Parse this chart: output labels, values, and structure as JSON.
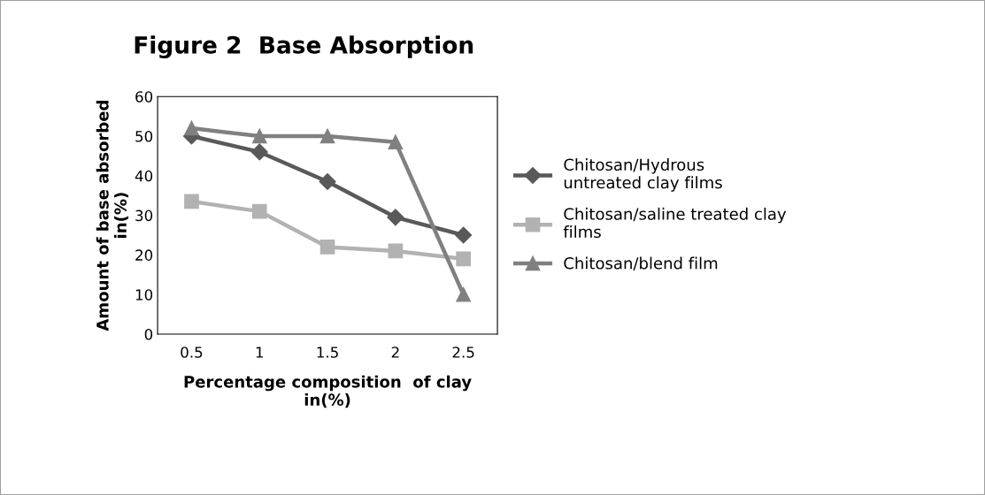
{
  "chart_data": {
    "type": "line",
    "title": "Figure 2  Base Absorption",
    "xlabel": "Percentage composition  of clay\nin(%)",
    "ylabel": "Amount of base absorbed\nin(%)",
    "categories": [
      "0.5",
      "1",
      "1.5",
      "2",
      "2.5"
    ],
    "series": [
      {
        "name": "Chitosan/Hydrous\nuntreated clay films",
        "color": "#595959",
        "marker": "diamond",
        "values": [
          50,
          46,
          38.5,
          29.5,
          25
        ]
      },
      {
        "name": "Chitosan/saline treated clay\nfilms",
        "color": "#b2b2b2",
        "marker": "square",
        "values": [
          33.5,
          31,
          22,
          21,
          19
        ]
      },
      {
        "name": "Chitosan/blend film",
        "color": "#808080",
        "marker": "triangle",
        "values": [
          52,
          50,
          50,
          48.5,
          10
        ]
      }
    ],
    "ylim": [
      0,
      60
    ],
    "yticks": [
      0,
      10,
      20,
      30,
      40,
      50,
      60
    ],
    "grid": false,
    "legend": "right",
    "line_style": "solid"
  }
}
